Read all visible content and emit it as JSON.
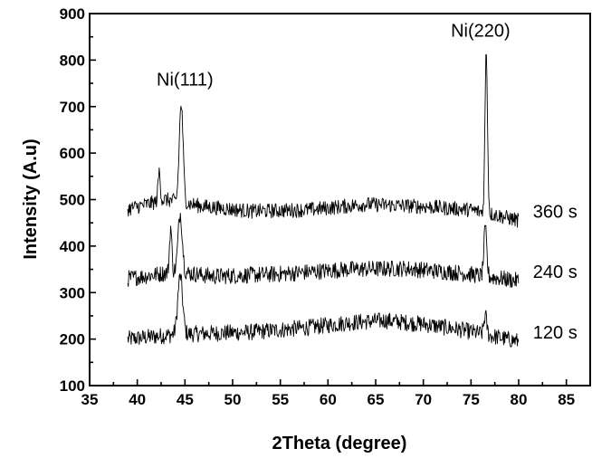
{
  "chart_data": {
    "type": "line",
    "xlabel": "2Theta (degree)",
    "ylabel": "Intensity (A.u)",
    "xlim": [
      35,
      87.5
    ],
    "ylim": [
      100,
      900
    ],
    "xticks": [
      35,
      40,
      45,
      50,
      55,
      60,
      65,
      70,
      75,
      80,
      85
    ],
    "yticks": [
      100,
      200,
      300,
      400,
      500,
      600,
      700,
      800,
      900
    ],
    "grid": false,
    "x_range": [
      39,
      80
    ],
    "series": [
      {
        "name": "120 s",
        "baseline": [
          [
            39,
            200
          ],
          [
            44,
            210
          ],
          [
            52,
            215
          ],
          [
            58,
            225
          ],
          [
            62,
            235
          ],
          [
            66,
            240
          ],
          [
            70,
            232
          ],
          [
            74,
            220
          ],
          [
            80,
            195
          ]
        ],
        "noise": 18,
        "peaks": [
          [
            44.5,
            335,
            0.25
          ],
          [
            76.5,
            250,
            0.15
          ]
        ]
      },
      {
        "name": "240 s",
        "baseline": [
          [
            39,
            330
          ],
          [
            44,
            345
          ],
          [
            48,
            335
          ],
          [
            55,
            340
          ],
          [
            62,
            350
          ],
          [
            68,
            352
          ],
          [
            74,
            342
          ],
          [
            80,
            325
          ]
        ],
        "noise": 18,
        "peaks": [
          [
            43.5,
            440,
            0.12
          ],
          [
            44.5,
            470,
            0.22
          ],
          [
            76.5,
            435,
            0.15
          ]
        ]
      },
      {
        "name": "360 s",
        "baseline": [
          [
            39,
            480
          ],
          [
            43,
            500
          ],
          [
            47,
            485
          ],
          [
            52,
            475
          ],
          [
            58,
            478
          ],
          [
            64,
            490
          ],
          [
            70,
            485
          ],
          [
            75,
            478
          ],
          [
            78,
            465
          ],
          [
            80,
            455
          ]
        ],
        "noise": 16,
        "peaks": [
          [
            42.3,
            560,
            0.12
          ],
          [
            44.6,
            705,
            0.2
          ],
          [
            76.6,
            820,
            0.13
          ]
        ]
      }
    ],
    "annotations": [
      {
        "text": "Ni(111)",
        "x": 45,
        "y": 745
      },
      {
        "text": "Ni(220)",
        "x": 76,
        "y": 850
      }
    ]
  }
}
